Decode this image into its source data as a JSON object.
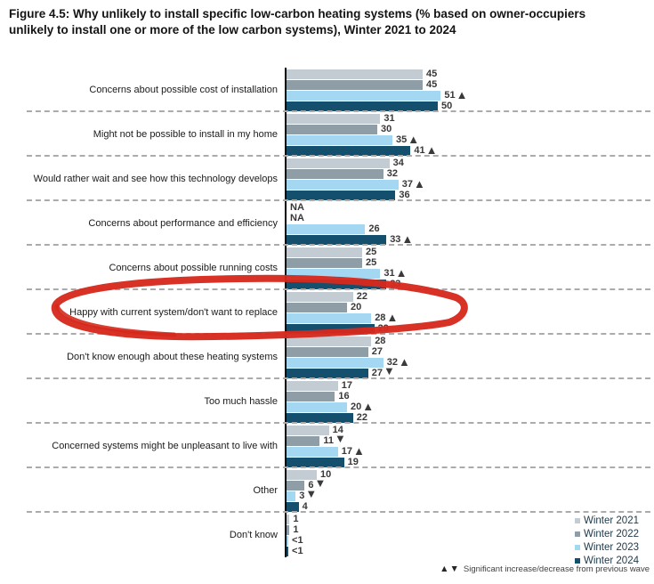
{
  "title": "Figure 4.5: Why unlikely to install specific low-carbon heating systems (% based on owner-occupiers unlikely to install one or more of the low carbon systems), Winter 2021 to 2024",
  "chart_data": {
    "type": "bar",
    "orientation": "horizontal",
    "value_unit": "percent",
    "xlim": [
      0,
      60
    ],
    "grid": false,
    "legend_position": "bottom-right",
    "series": [
      {
        "name": "Winter 2021",
        "color": "#c2ccd2"
      },
      {
        "name": "Winter 2022",
        "color": "#8e9da6"
      },
      {
        "name": "Winter 2023",
        "color": "#a4d7f1"
      },
      {
        "name": "Winter 2024",
        "color": "#14506e"
      }
    ],
    "rows": [
      {
        "label": "Concerns about possible cost of installation",
        "values": [
          {
            "label": "45",
            "value": 45,
            "arrow": null
          },
          {
            "label": "45",
            "value": 45,
            "arrow": null
          },
          {
            "label": "51",
            "value": 51,
            "arrow": "up"
          },
          {
            "label": "50",
            "value": 50,
            "arrow": null
          }
        ]
      },
      {
        "label": "Might not be possible to install in my home",
        "values": [
          {
            "label": "31",
            "value": 31,
            "arrow": null
          },
          {
            "label": "30",
            "value": 30,
            "arrow": null
          },
          {
            "label": "35",
            "value": 35,
            "arrow": "up"
          },
          {
            "label": "41",
            "value": 41,
            "arrow": "up"
          }
        ]
      },
      {
        "label": "Would rather wait and see how this technology develops",
        "values": [
          {
            "label": "34",
            "value": 34,
            "arrow": null
          },
          {
            "label": "32",
            "value": 32,
            "arrow": null
          },
          {
            "label": "37",
            "value": 37,
            "arrow": "up"
          },
          {
            "label": "36",
            "value": 36,
            "arrow": null
          }
        ]
      },
      {
        "label": "Concerns about performance and efficiency",
        "values": [
          {
            "label": "NA",
            "value": null,
            "arrow": null
          },
          {
            "label": "NA",
            "value": null,
            "arrow": null
          },
          {
            "label": "26",
            "value": 26,
            "arrow": null
          },
          {
            "label": "33",
            "value": 33,
            "arrow": "up"
          }
        ]
      },
      {
        "label": "Concerns about possible running costs",
        "values": [
          {
            "label": "25",
            "value": 25,
            "arrow": null
          },
          {
            "label": "25",
            "value": 25,
            "arrow": null
          },
          {
            "label": "31",
            "value": 31,
            "arrow": "up"
          },
          {
            "label": "33",
            "value": 33,
            "arrow": null
          }
        ]
      },
      {
        "label": "Happy with current system/don't want to replace",
        "values": [
          {
            "label": "22",
            "value": 22,
            "arrow": null
          },
          {
            "label": "20",
            "value": 20,
            "arrow": null
          },
          {
            "label": "28",
            "value": 28,
            "arrow": "up"
          },
          {
            "label": "29",
            "value": 29,
            "arrow": null
          }
        ]
      },
      {
        "label": "Don't know enough about these heating systems",
        "values": [
          {
            "label": "28",
            "value": 28,
            "arrow": null
          },
          {
            "label": "27",
            "value": 27,
            "arrow": null
          },
          {
            "label": "32",
            "value": 32,
            "arrow": "up"
          },
          {
            "label": "27",
            "value": 27,
            "arrow": "down"
          }
        ]
      },
      {
        "label": "Too much hassle",
        "values": [
          {
            "label": "17",
            "value": 17,
            "arrow": null
          },
          {
            "label": "16",
            "value": 16,
            "arrow": null
          },
          {
            "label": "20",
            "value": 20,
            "arrow": "up"
          },
          {
            "label": "22",
            "value": 22,
            "arrow": null
          }
        ]
      },
      {
        "label": "Concerned systems might be unpleasant to live with",
        "values": [
          {
            "label": "14",
            "value": 14,
            "arrow": null
          },
          {
            "label": "11",
            "value": 11,
            "arrow": "down"
          },
          {
            "label": "17",
            "value": 17,
            "arrow": "up"
          },
          {
            "label": "19",
            "value": 19,
            "arrow": null
          }
        ]
      },
      {
        "label": "Other",
        "values": [
          {
            "label": "10",
            "value": 10,
            "arrow": null
          },
          {
            "label": "6",
            "value": 6,
            "arrow": "down"
          },
          {
            "label": "3",
            "value": 3,
            "arrow": "down"
          },
          {
            "label": "4",
            "value": 4,
            "arrow": null
          }
        ]
      },
      {
        "label": "Don't know",
        "values": [
          {
            "label": "1",
            "value": 1,
            "arrow": null
          },
          {
            "label": "1",
            "value": 1,
            "arrow": null
          },
          {
            "label": "<1",
            "value": 0.6,
            "arrow": null
          },
          {
            "label": "<1",
            "value": 0.6,
            "arrow": null
          }
        ]
      }
    ],
    "footnote_icons": "▲▼",
    "footnote_text": "Significant increase/decrease from previous wave"
  },
  "annotation": {
    "shape": "hand-drawn red circle",
    "color": "#d6291d",
    "highlighted_category": "Happy with current system/don't want to replace"
  }
}
